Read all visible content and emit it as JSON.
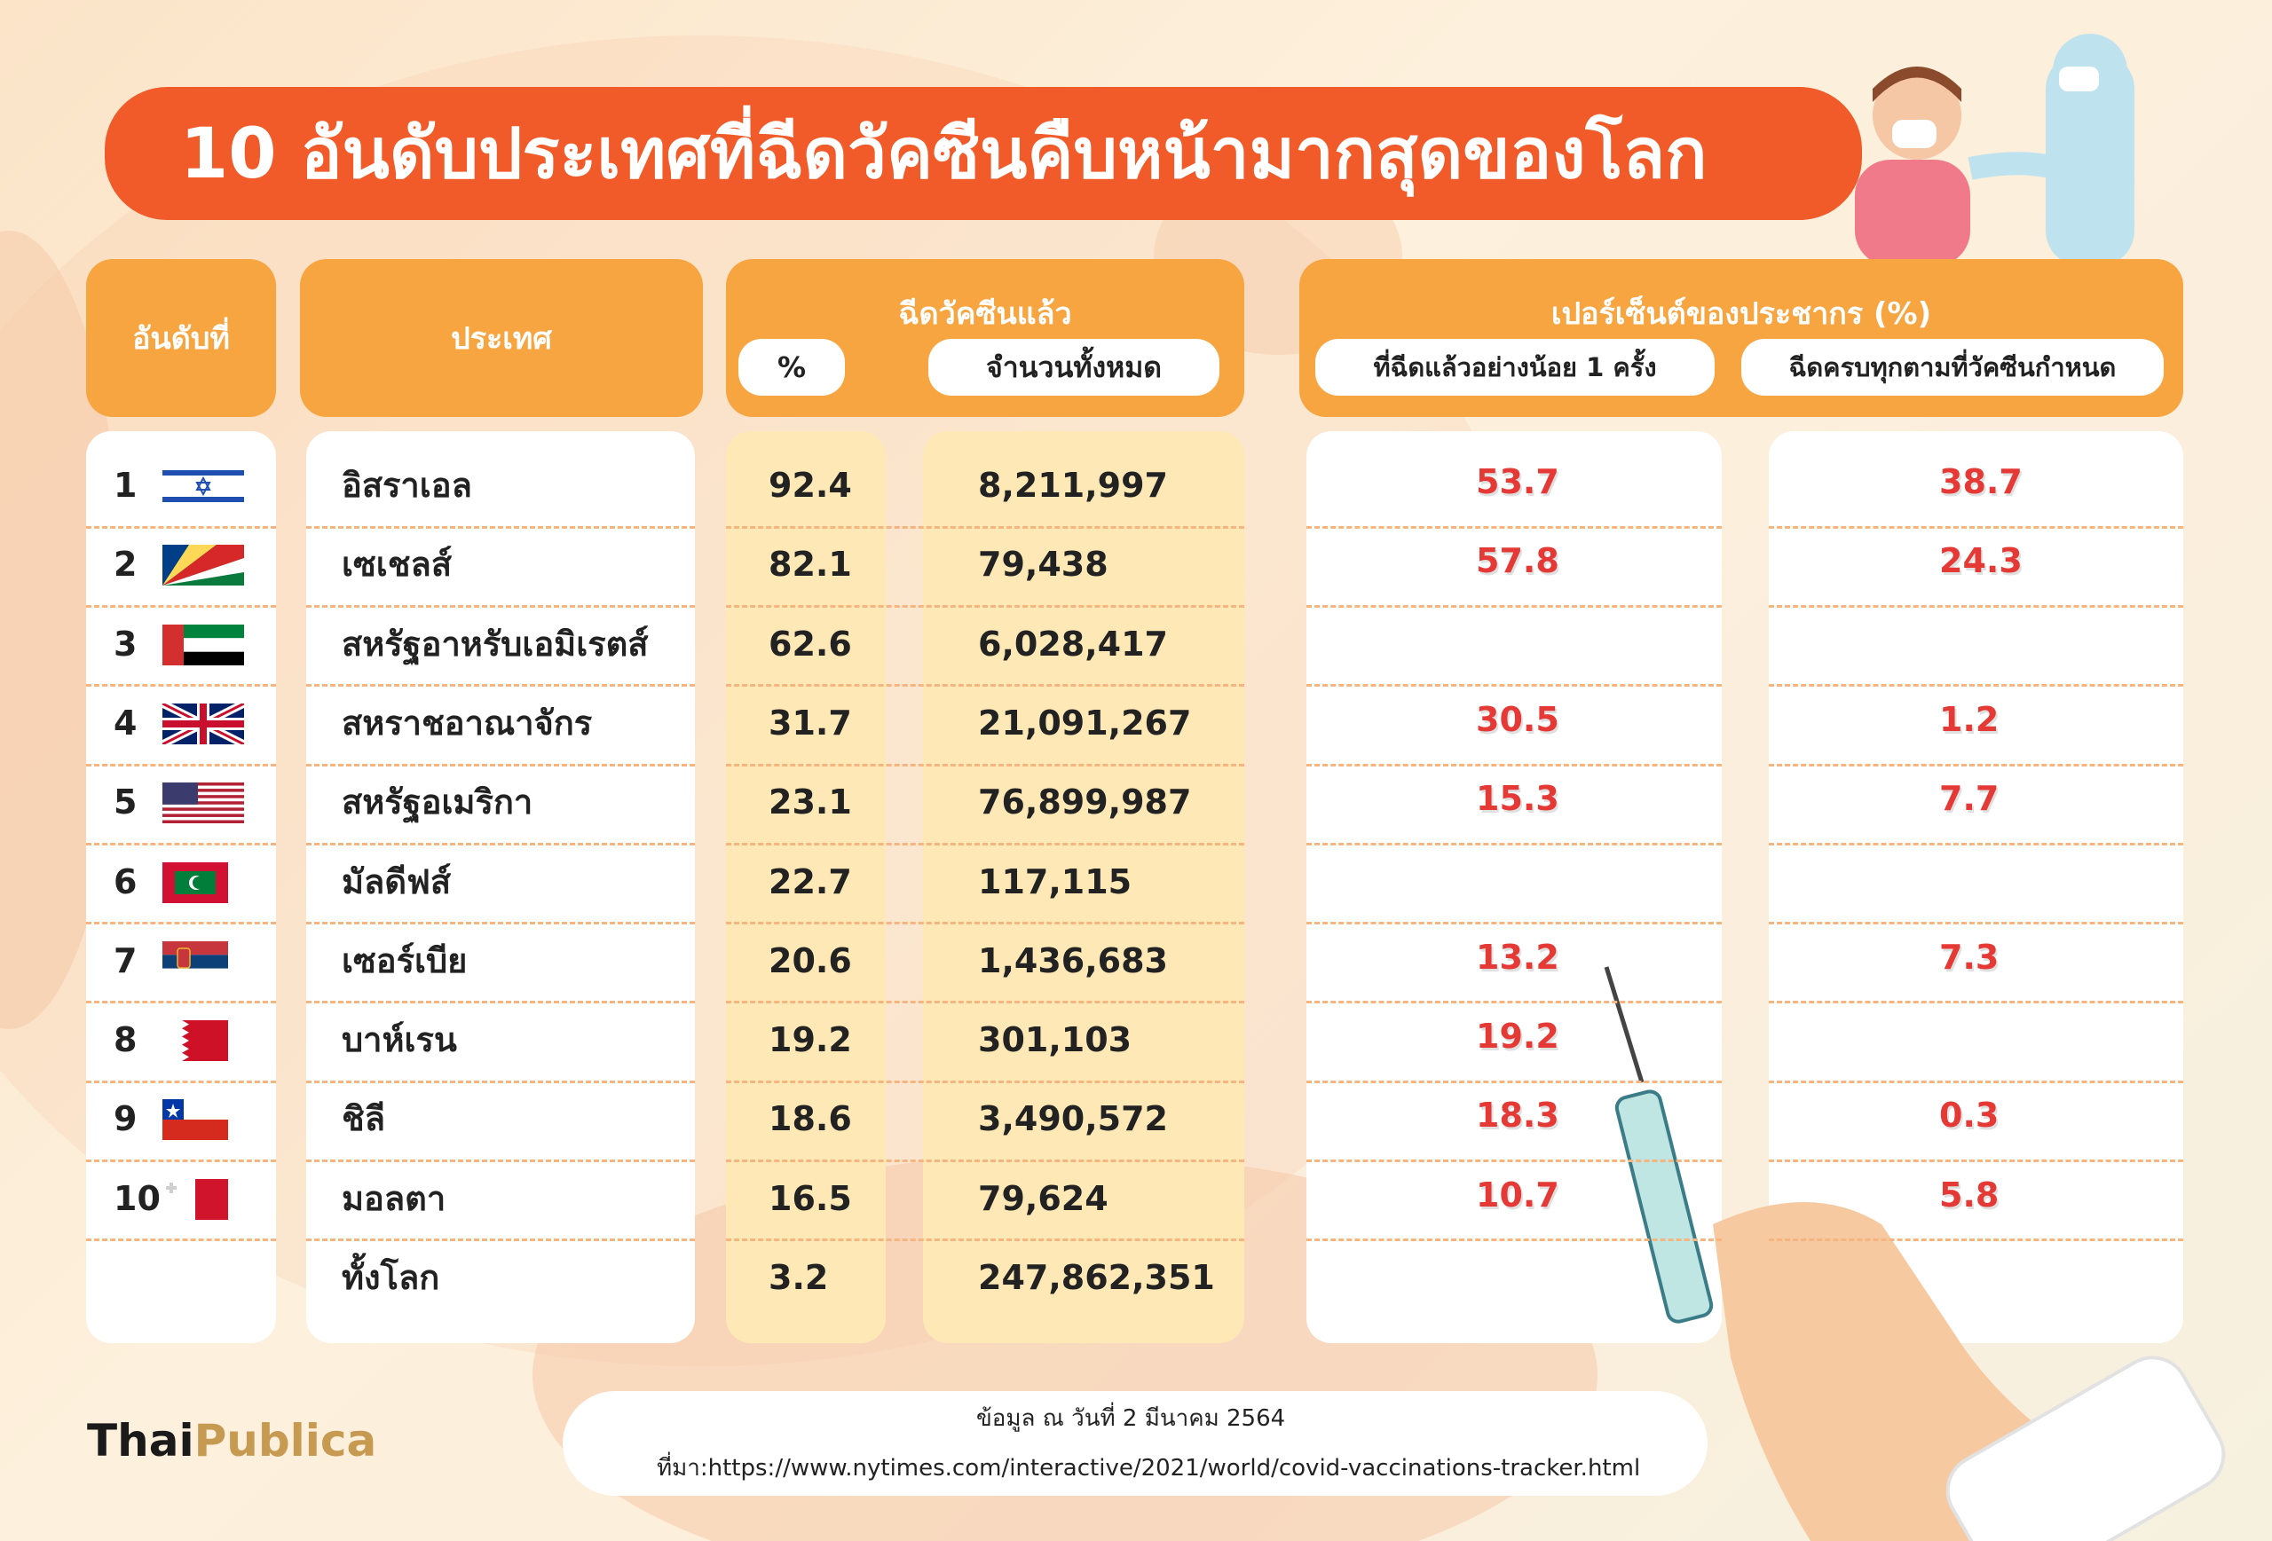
{
  "title": "10 อันดับประเทศที่ฉีดวัคซีนคืบหน้ามากสุดของโลก",
  "headers": {
    "rank": "อันดับที่",
    "country": "ประเทศ",
    "vaccinated_group": "ฉีดวัคซีนแล้ว",
    "pct": "%",
    "total": "จำนวนทั้งหมด",
    "population_group": "เปอร์เซ็นต์ของประชากร (%)",
    "at_least_one": "ที่ฉีดแล้วอย่างน้อย 1 ครั้ง",
    "fully": "ฉีดครบทุกตามที่วัคซีนกำหนด"
  },
  "chart_data": {
    "type": "table",
    "title": "10 อันดับประเทศที่ฉีดวัคซีนคืบหน้ามากสุดของโลก",
    "columns": [
      "อันดับที่",
      "ประเทศ",
      "%",
      "จำนวนทั้งหมด",
      "ที่ฉีดแล้วอย่างน้อย 1 ครั้ง",
      "ฉีดครบทุกตามที่วัคซีนกำหนด"
    ],
    "rows": [
      {
        "rank": "1",
        "flag": "israel",
        "country": "อิสราเอล",
        "pct": "92.4",
        "total": "8,211,997",
        "one_dose": "53.7",
        "fully": "38.7"
      },
      {
        "rank": "2",
        "flag": "seychelles",
        "country": "เซเชลส์",
        "pct": "82.1",
        "total": "79,438",
        "one_dose": "57.8",
        "fully": "24.3"
      },
      {
        "rank": "3",
        "flag": "uae",
        "country": "สหรัฐอาหรับเอมิเรตส์",
        "pct": "62.6",
        "total": "6,028,417",
        "one_dose": "",
        "fully": ""
      },
      {
        "rank": "4",
        "flag": "uk",
        "country": "สหราชอาณาจักร",
        "pct": "31.7",
        "total": "21,091,267",
        "one_dose": "30.5",
        "fully": "1.2"
      },
      {
        "rank": "5",
        "flag": "usa",
        "country": "สหรัฐอเมริกา",
        "pct": "23.1",
        "total": "76,899,987",
        "one_dose": "15.3",
        "fully": "7.7"
      },
      {
        "rank": "6",
        "flag": "maldives",
        "country": "มัลดีฟส์",
        "pct": "22.7",
        "total": "117,115",
        "one_dose": "",
        "fully": ""
      },
      {
        "rank": "7",
        "flag": "serbia",
        "country": "เซอร์เบีย",
        "pct": "20.6",
        "total": "1,436,683",
        "one_dose": "13.2",
        "fully": "7.3"
      },
      {
        "rank": "8",
        "flag": "bahrain",
        "country": "บาห์เรน",
        "pct": "19.2",
        "total": "301,103",
        "one_dose": "19.2",
        "fully": ""
      },
      {
        "rank": "9",
        "flag": "chile",
        "country": "ชิลี",
        "pct": "18.6",
        "total": "3,490,572",
        "one_dose": "18.3",
        "fully": "0.3"
      },
      {
        "rank": "10",
        "flag": "malta",
        "country": "มอลตา",
        "pct": "16.5",
        "total": "79,624",
        "one_dose": "10.7",
        "fully": "5.8"
      },
      {
        "rank": "",
        "flag": "",
        "country": "ทั้งโลก",
        "pct": "3.2",
        "total": "247,862,351",
        "one_dose": "",
        "fully": ""
      }
    ]
  },
  "colors": {
    "title_bg": "#f15a29",
    "header_bg": "#f7a541",
    "highlight_col": "#fde8b6",
    "value_red": "#e53935",
    "brand_gold": "#c79a52"
  },
  "footer": {
    "date": "ข้อมูล ณ วันที่ 2 มีนาคม 2564",
    "source": "ที่มา:https://www.nytimes.com/interactive/2021/world/covid-vaccinations-tracker.html"
  },
  "brand": {
    "part1": "Thai",
    "part2": "Publica"
  }
}
